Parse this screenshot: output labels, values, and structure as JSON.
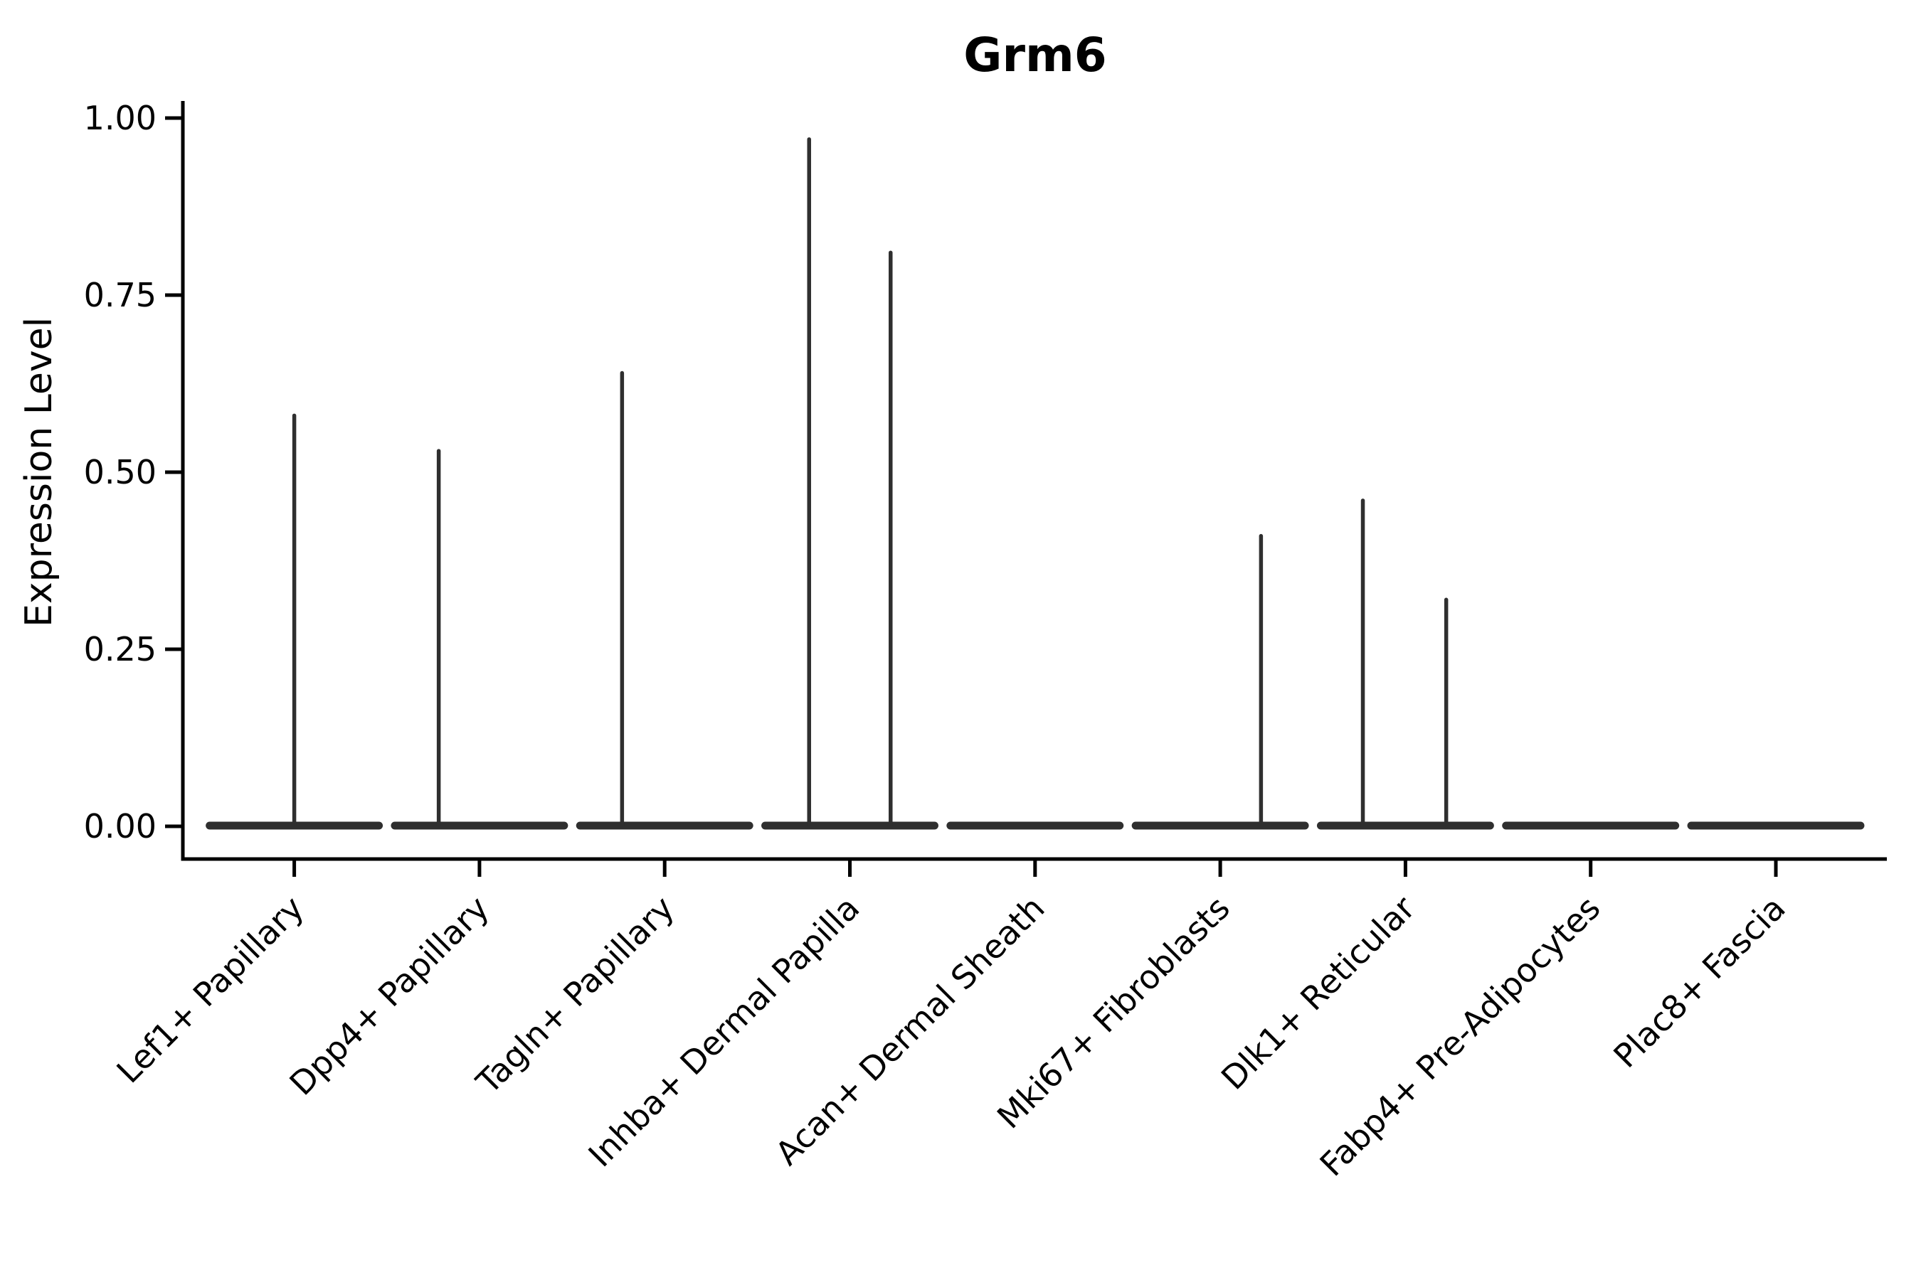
{
  "figure": {
    "title": "Grm6",
    "background": "#ffffff"
  },
  "chart_data": {
    "type": "violin",
    "title": "Grm6",
    "xlabel": "",
    "ylabel": "Expression Level",
    "ylim": [
      0,
      1.0
    ],
    "ytick_values": [
      0.0,
      0.25,
      0.5,
      0.75,
      1.0
    ],
    "ytick_labels": [
      "0.00",
      "0.25",
      "0.50",
      "0.75",
      "1.00"
    ],
    "grid": false,
    "legend": "none",
    "x_tick_rotation_deg": 45,
    "categories": [
      "Lef1+ Papillary",
      "Dpp4+ Papillary",
      "Tagln+ Papillary",
      "Inhba+ Dermal Papilla",
      "Acan+ Dermal Sheath",
      "Mki67+ Fibroblasts",
      "Dlk1+ Reticular",
      "Fabp4+ Pre-Adipocytes",
      "Plac8+ Fascia"
    ],
    "violin_color": "#2f2f2f",
    "axis_color": "#000000",
    "base_half_width": 0.457,
    "series": [
      {
        "category": "Lef1+ Papillary",
        "baseline": 0.0,
        "spikes": [
          {
            "offset": 0.0,
            "peak": 0.58
          }
        ]
      },
      {
        "category": "Dpp4+ Papillary",
        "baseline": 0.0,
        "spikes": [
          {
            "offset": -0.22,
            "peak": 0.53
          }
        ]
      },
      {
        "category": "Tagln+ Papillary",
        "baseline": 0.0,
        "spikes": [
          {
            "offset": -0.23,
            "peak": 0.64
          }
        ]
      },
      {
        "category": "Inhba+ Dermal Papilla",
        "baseline": 0.0,
        "spikes": [
          {
            "offset": -0.22,
            "peak": 0.97
          },
          {
            "offset": 0.22,
            "peak": 0.81
          }
        ]
      },
      {
        "category": "Acan+ Dermal Sheath",
        "baseline": 0.0,
        "spikes": []
      },
      {
        "category": "Mki67+ Fibroblasts",
        "baseline": 0.0,
        "spikes": [
          {
            "offset": 0.22,
            "peak": 0.41
          }
        ]
      },
      {
        "category": "Dlk1+ Reticular",
        "baseline": 0.0,
        "spikes": [
          {
            "offset": -0.23,
            "peak": 0.46
          },
          {
            "offset": 0.22,
            "peak": 0.32
          }
        ]
      },
      {
        "category": "Fabp4+ Pre-Adipocytes",
        "baseline": 0.0,
        "spikes": []
      },
      {
        "category": "Plac8+ Fascia",
        "baseline": 0.0,
        "spikes": []
      }
    ]
  }
}
